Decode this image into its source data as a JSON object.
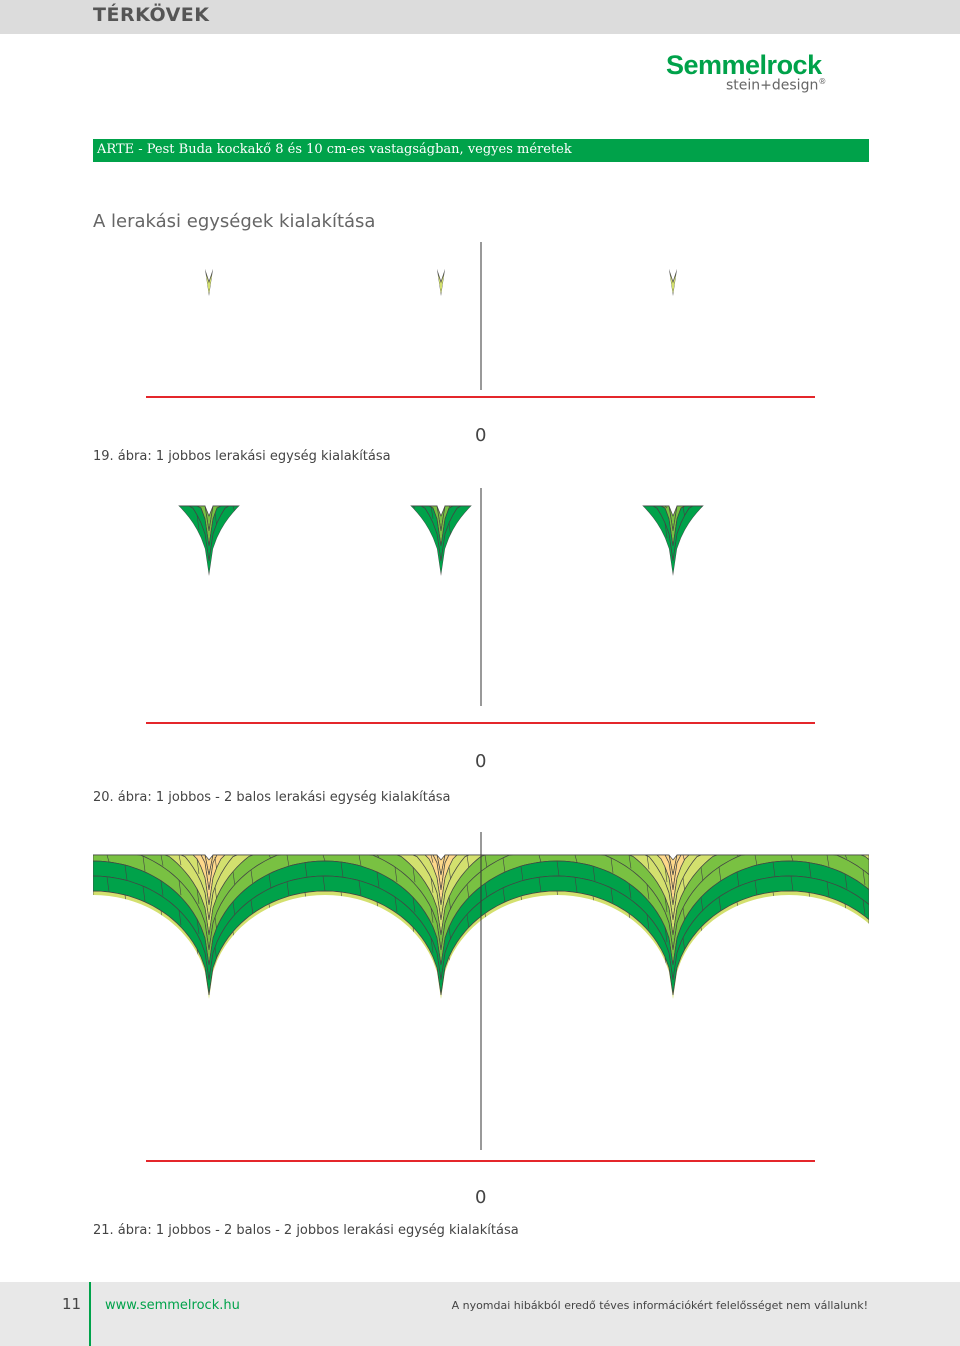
{
  "header": {
    "category": "TÉRKÖVEK",
    "brand": "Semmelrock",
    "brand_sub": "stein+design",
    "brand_reg": "®"
  },
  "section_title": "ARTE - Pest Buda kockakő 8 és 10 cm-es vastagságban, vegyes méretek",
  "heading": "A lerakási egységek kialakítása",
  "colors": {
    "light": "#d3e06e",
    "medium": "#79c142",
    "dark": "#00a24a",
    "orange": "#fdd88a",
    "accent": "#00a24a",
    "baseline": "#e4262b"
  },
  "figures": [
    {
      "caption": "19. ábra: 1 jobbos lerakási egység kialakítása",
      "zero_label": "0"
    },
    {
      "caption": "20. ábra: 1 jobbos - 2 balos lerakási egység kialakítása",
      "zero_label": "0"
    },
    {
      "caption": "21. ábra: 1 jobbos - 2 balos - 2 jobbos lerakási egység kialakítása",
      "zero_label": "0"
    }
  ],
  "footer": {
    "page": "11",
    "url": "www.semmelrock.hu",
    "note": "A nyomdai hibákból eredő téves információkért felelősséget nem vállalunk!"
  }
}
